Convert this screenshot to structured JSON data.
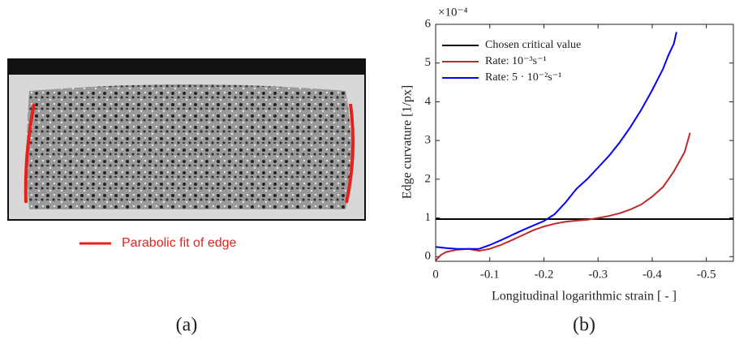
{
  "panel_a": {
    "legend": "Parabolic fit of edge",
    "label": "(a)"
  },
  "chart_data": {
    "type": "line",
    "panel_label": "(b)",
    "x_label": "Longitudinal logarithmic strain [ - ]",
    "y_label": "Edge curvature [1/px]",
    "y_multiplier": "×10⁻⁴",
    "xlim": [
      0,
      -0.55
    ],
    "ylim": [
      -0.12,
      6
    ],
    "xticks": [
      0,
      -0.1,
      -0.2,
      -0.3,
      -0.4,
      -0.5
    ],
    "yticks": [
      0,
      1,
      2,
      3,
      4,
      5,
      6
    ],
    "legend_position": "upper-left",
    "series": [
      {
        "name": "Chosen critical value",
        "color": "#000000",
        "x": [
          0,
          -0.55
        ],
        "values": [
          0.97,
          0.97
        ]
      },
      {
        "name": "Rate: 10⁻³s⁻¹",
        "color": "#c0282c",
        "x": [
          0,
          -0.01,
          -0.02,
          -0.04,
          -0.06,
          -0.08,
          -0.1,
          -0.12,
          -0.14,
          -0.16,
          -0.18,
          -0.2,
          -0.22,
          -0.24,
          -0.26,
          -0.28,
          -0.3,
          -0.32,
          -0.34,
          -0.36,
          -0.38,
          -0.4,
          -0.42,
          -0.44,
          -0.46,
          -0.47
        ],
        "values": [
          -0.1,
          0.05,
          0.12,
          0.18,
          0.2,
          0.15,
          0.2,
          0.3,
          0.42,
          0.55,
          0.68,
          0.78,
          0.85,
          0.9,
          0.93,
          0.95,
          1.0,
          1.05,
          1.12,
          1.22,
          1.35,
          1.55,
          1.8,
          2.2,
          2.7,
          3.2
        ]
      },
      {
        "name": "Rate: 5 · 10⁻²s⁻¹",
        "color": "#0000ff",
        "x": [
          0,
          -0.02,
          -0.04,
          -0.06,
          -0.08,
          -0.1,
          -0.12,
          -0.14,
          -0.16,
          -0.18,
          -0.2,
          -0.22,
          -0.24,
          -0.26,
          -0.28,
          -0.3,
          -0.32,
          -0.34,
          -0.36,
          -0.38,
          -0.4,
          -0.42,
          -0.43,
          -0.44,
          -0.445
        ],
        "values": [
          0.25,
          0.22,
          0.2,
          0.2,
          0.2,
          0.3,
          0.42,
          0.55,
          0.68,
          0.8,
          0.92,
          1.1,
          1.4,
          1.75,
          2.0,
          2.3,
          2.6,
          2.95,
          3.35,
          3.8,
          4.3,
          4.85,
          5.2,
          5.5,
          5.8
        ]
      }
    ]
  }
}
